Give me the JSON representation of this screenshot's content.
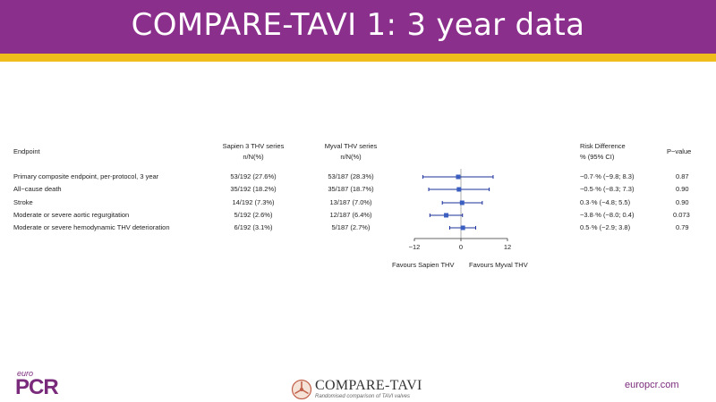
{
  "header": {
    "title": "COMPARE-TAVI 1: 3 year data"
  },
  "table": {
    "col_endpoint": "Endpoint",
    "col_sapien_1": "Sapien 3 THV series",
    "col_sapien_2": "n/N(%)",
    "col_myval_1": "Myval THV series",
    "col_myval_2": "n/N(%)",
    "col_rd_1": "Risk Difference",
    "col_rd_2": "% (95% CI)",
    "col_p": "P−value",
    "rows": [
      {
        "endpoint": "Primary composite endpoint, per-protocol, 3 year",
        "sapien": "53/192 (27.6%)",
        "myval": "53/187 (28.3%)",
        "rd_text": "−0.7·% (−9.8; 8.3)",
        "p": "0.87"
      },
      {
        "endpoint": "All−cause death",
        "sapien": "35/192 (18.2%)",
        "myval": "35/187 (18.7%)",
        "rd_text": "−0.5·% (−8.3; 7.3)",
        "p": "0.90"
      },
      {
        "endpoint": "Stroke",
        "sapien": "14/192 (7.3%)",
        "myval": "13/187 (7.0%)",
        "rd_text": "0.3·% (−4.8; 5.5)",
        "p": "0.90"
      },
      {
        "endpoint": "Moderate or severe aortic regurgitation",
        "sapien": "5/192 (2.6%)",
        "myval": "12/187 (6.4%)",
        "rd_text": "−3.8·% (−8.0; 0.4)",
        "p": "0.073"
      },
      {
        "endpoint": "Moderate or severe hemodynamic THV deterioration",
        "sapien": "6/192 (3.1%)",
        "myval": "5/187 (2.7%)",
        "rd_text": "0.5·% (−2.9; 3.8)",
        "p": "0.79"
      }
    ]
  },
  "chart_data": {
    "type": "forest",
    "x_ticks": [
      "−12",
      "0",
      "12"
    ],
    "xlim": [
      -12,
      12
    ],
    "points": [
      {
        "estimate": -0.7,
        "ci_low": -9.8,
        "ci_high": 8.3
      },
      {
        "estimate": -0.5,
        "ci_low": -8.3,
        "ci_high": 7.3
      },
      {
        "estimate": 0.3,
        "ci_low": -4.8,
        "ci_high": 5.5
      },
      {
        "estimate": -3.8,
        "ci_low": -8.0,
        "ci_high": 0.4
      },
      {
        "estimate": 0.5,
        "ci_low": -2.9,
        "ci_high": 3.8
      }
    ],
    "favours_left": "Favours Sapien THV",
    "favours_right": "Favours Myval THV",
    "marker_color": "#3a5fc0",
    "line_color": "#1a2f9a"
  },
  "footer": {
    "logo_euro": "euro",
    "logo_pcr": "PCR",
    "partner_name": "COMPARE-TAVI",
    "partner_tagline": "Randomised comparison of TAVI valves",
    "website": "europcr.com"
  },
  "colors": {
    "brand_purple": "#8b2f8c",
    "accent_yellow": "#f0be1c"
  }
}
